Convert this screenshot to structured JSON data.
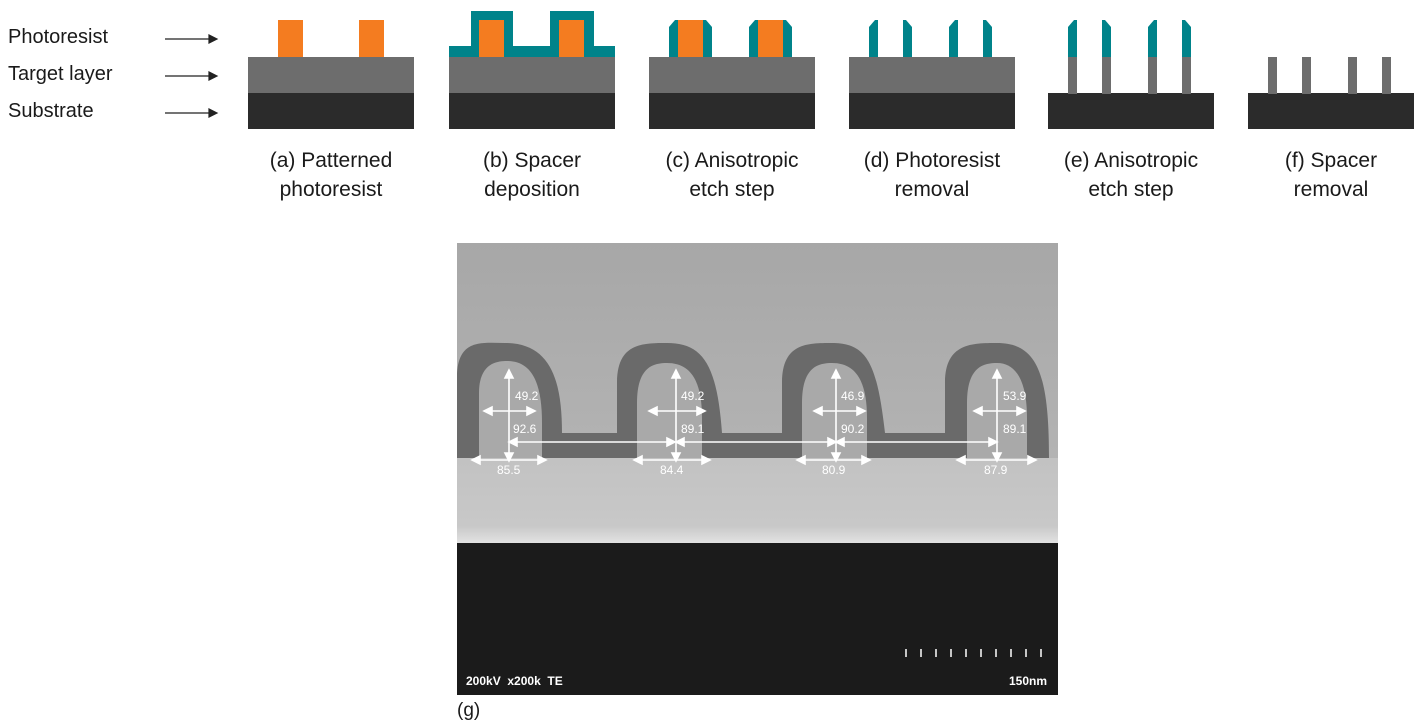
{
  "legend": {
    "photoresist": "Photoresist",
    "target_layer": "Target layer",
    "substrate": "Substrate"
  },
  "colors": {
    "photoresist": "#f47c20",
    "spacer": "#00838a",
    "target_layer": "#6d6d6d",
    "substrate": "#2b2b2b"
  },
  "steps": [
    {
      "label_line1": "(a) Patterned",
      "label_line2": "photoresist"
    },
    {
      "label_line1": "(b) Spacer",
      "label_line2": "deposition"
    },
    {
      "label_line1": "(c) Anisotropic",
      "label_line2": "etch step"
    },
    {
      "label_line1": "(d) Photoresist",
      "label_line2": "removal"
    },
    {
      "label_line1": "(e) Anisotropic",
      "label_line2": "etch step"
    },
    {
      "label_line1": "(f) Spacer",
      "label_line2": "removal"
    }
  ],
  "sem": {
    "tops": [
      "49.2",
      "49.2",
      "46.9",
      "53.9"
    ],
    "mids": [
      "92.6",
      "89.1",
      "90.2",
      "89.1"
    ],
    "bottoms": [
      "85.5",
      "84.4",
      "80.9",
      "87.9"
    ],
    "info": "200kV  x200k  TE",
    "scale": "150nm",
    "caption": "(g)"
  }
}
